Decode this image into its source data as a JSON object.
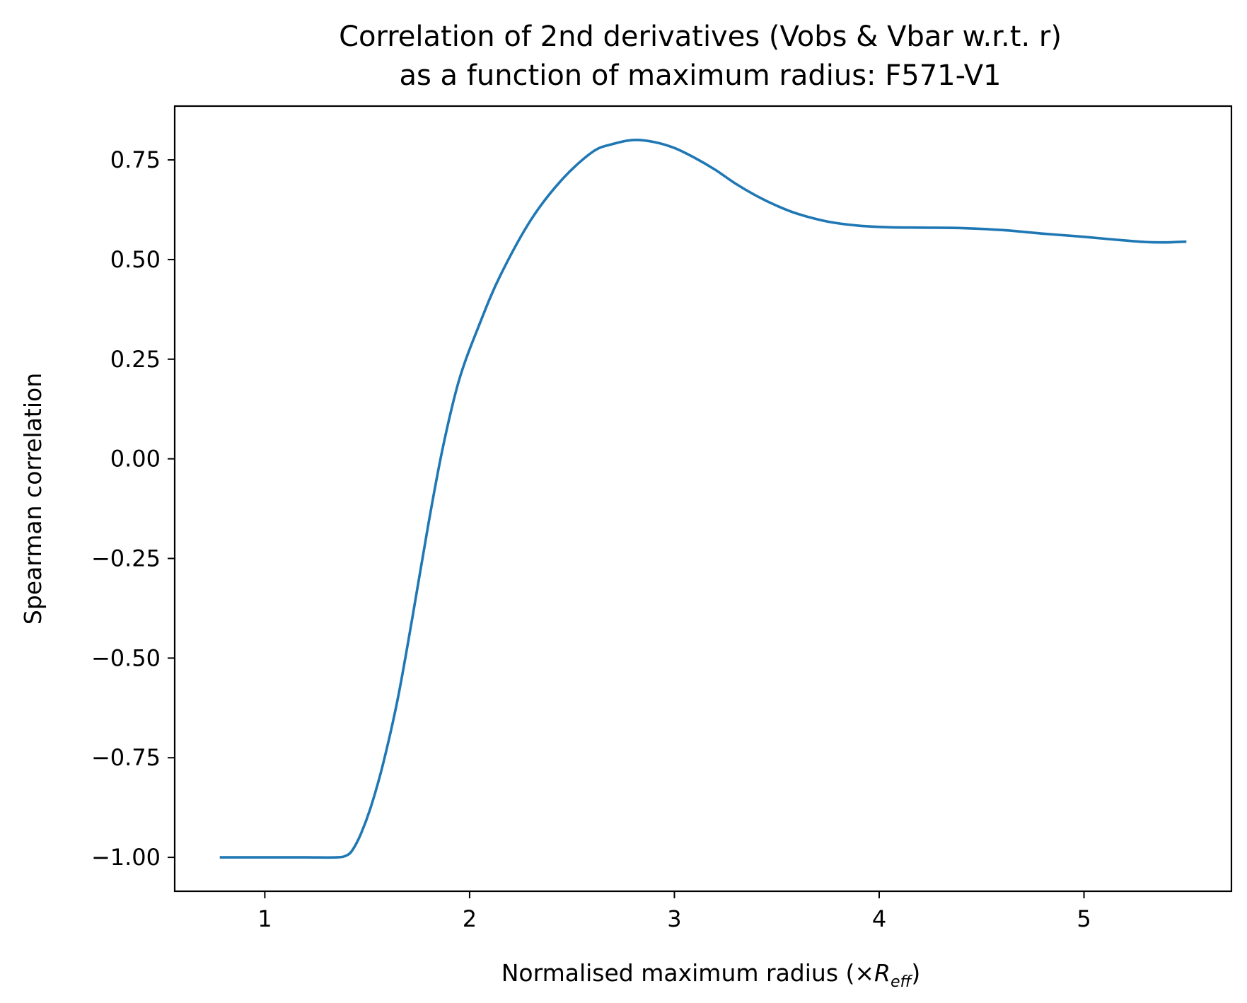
{
  "chart_data": {
    "type": "line",
    "title_line1": "Correlation of 2nd derivatives (Vobs & Vbar w.r.t. r)",
    "title_line2": "as a function of maximum radius: F571-V1",
    "xlabel_main": "Normalised maximum radius (×",
    "xlabel_var": "R",
    "xlabel_sub": "eff",
    "xlabel_close": ")",
    "ylabel": "Spearman correlation",
    "xlim": [
      0.56,
      5.72
    ],
    "ylim": [
      -1.085,
      0.885
    ],
    "x_ticks": [
      1,
      2,
      3,
      4,
      5
    ],
    "x_tick_labels": [
      "1",
      "2",
      "3",
      "4",
      "5"
    ],
    "y_ticks": [
      -1.0,
      -0.75,
      -0.5,
      -0.25,
      0.0,
      0.25,
      0.5,
      0.75
    ],
    "y_tick_labels": [
      "−1.00",
      "−0.75",
      "−0.50",
      "−0.25",
      "0.00",
      "0.25",
      "0.50",
      "0.75"
    ],
    "grid": false,
    "series": [
      {
        "color": "#1f77b4",
        "x": [
          0.78,
          1.0,
          1.2,
          1.35,
          1.4,
          1.43,
          1.47,
          1.52,
          1.58,
          1.65,
          1.72,
          1.8,
          1.87,
          1.95,
          2.05,
          2.15,
          2.3,
          2.45,
          2.6,
          2.7,
          2.8,
          2.9,
          3.0,
          3.1,
          3.2,
          3.3,
          3.4,
          3.5,
          3.6,
          3.75,
          3.9,
          4.05,
          4.2,
          4.4,
          4.6,
          4.8,
          5.0,
          5.15,
          5.3,
          5.4,
          5.5
        ],
        "y": [
          -1.0,
          -1.0,
          -1.0,
          -1.0,
          -0.995,
          -0.98,
          -0.94,
          -0.87,
          -0.76,
          -0.6,
          -0.4,
          -0.16,
          0.03,
          0.2,
          0.34,
          0.46,
          0.6,
          0.7,
          0.77,
          0.79,
          0.8,
          0.795,
          0.78,
          0.755,
          0.725,
          0.69,
          0.66,
          0.635,
          0.615,
          0.595,
          0.585,
          0.581,
          0.58,
          0.579,
          0.574,
          0.565,
          0.557,
          0.55,
          0.544,
          0.543,
          0.545
        ]
      }
    ]
  }
}
